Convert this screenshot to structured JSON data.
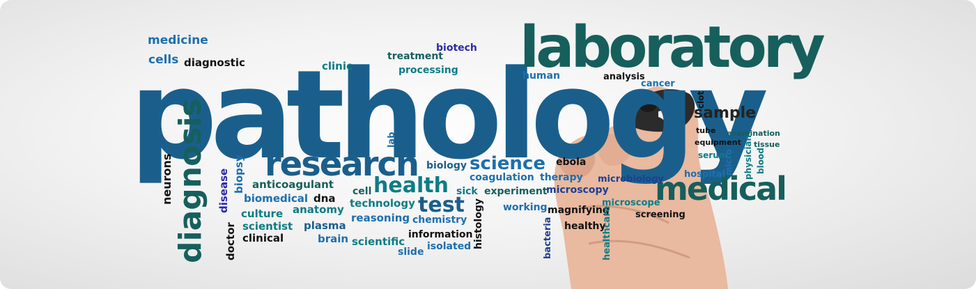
{
  "word_cloud": {
    "primary": "pathology",
    "laboratory": "laboratory",
    "research": "research",
    "medical": "medical",
    "diagnosis": "diagnosis",
    "health": "health",
    "test": "test",
    "science": "science",
    "sample": "sample",
    "words": {
      "medicine": "medicine",
      "cells": "cells",
      "diagnostic": "diagnostic",
      "clinic": "clinic",
      "treatment": "treatment",
      "biotech": "biotech",
      "processing": "processing",
      "human": "human",
      "analysis": "analysis",
      "cancer": "cancer",
      "clot": "clot",
      "tube": "tube",
      "examination": "examination",
      "equipment": "equipment",
      "tissue": "tissue",
      "serum": "serum",
      "micro": "micro",
      "physician": "physician",
      "blood": "blood",
      "hospital": "hospital",
      "lab": "lab",
      "biology": "biology",
      "ebola": "ebola",
      "neurons": "neurons",
      "biopsy": "biopsy",
      "disease": "disease",
      "anticoagulant": "anticoagulant",
      "coagulation": "coagulation",
      "therapy": "therapy",
      "microbiology": "microbiology",
      "cell": "cell",
      "sick": "sick",
      "experiment": "experiment",
      "microscopy": "microscopy",
      "biomedical": "biomedical",
      "dna": "dna",
      "technology": "technology",
      "culture": "culture",
      "anatomy": "anatomy",
      "working": "working",
      "magnifying": "magnifying",
      "microscope": "microscope",
      "scientist": "scientist",
      "plasma": "plasma",
      "reasoning": "reasoning",
      "chemistry": "chemistry",
      "screening": "screening",
      "doctor": "doctor",
      "clinical": "clinical",
      "brain": "brain",
      "scientific": "scientific",
      "information": "information",
      "healthy": "healthy",
      "slide": "slide",
      "isolated": "isolated",
      "histology": "histology",
      "bacteria": "bacteria",
      "healthcare": "healthcare"
    },
    "colors": {
      "deep_blue": "#1a5f8c",
      "teal": "#0e7c86",
      "dark_teal": "#165f5c",
      "navy": "#1d3f8f",
      "black": "#111111",
      "indigo": "#2a2aa8"
    }
  },
  "image": {
    "subject": "hand-holding-marker-writing-word-cloud"
  }
}
